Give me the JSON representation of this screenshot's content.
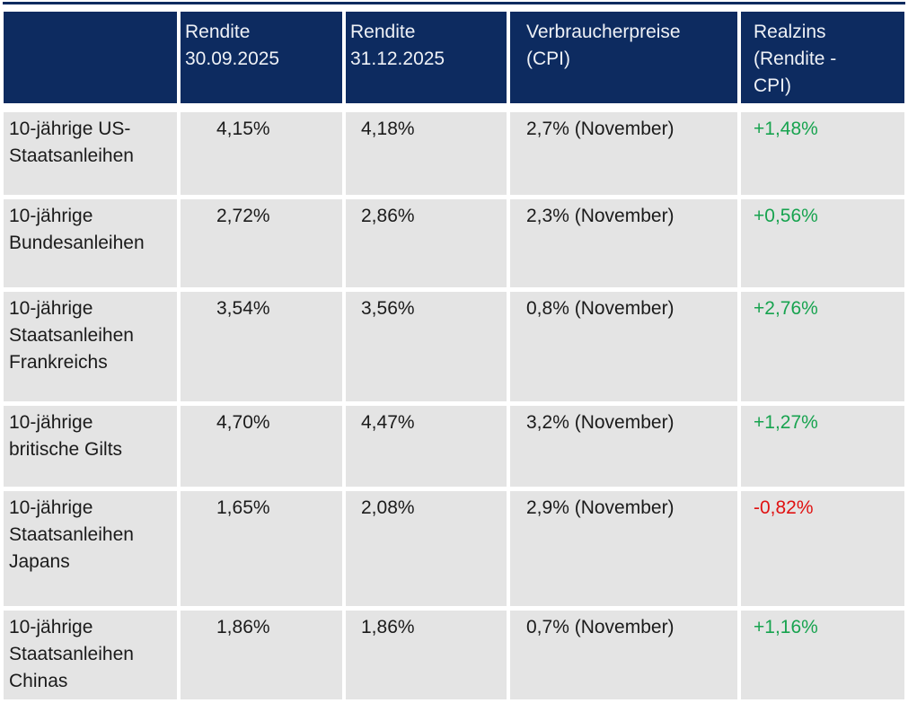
{
  "colors": {
    "header_bg": "#0d2b60",
    "header_text": "#eef1f6",
    "row_bg": "#e4e4e4",
    "body_text": "#1b1b1b",
    "positive": "#17a34f",
    "negative": "#e01111",
    "page_bg": "#ffffff"
  },
  "chart_data": {
    "type": "table",
    "columns": [
      {
        "key": "label",
        "label": ""
      },
      {
        "key": "rendite_30_09_2025",
        "label": "Rendite\n30.09.2025"
      },
      {
        "key": "rendite_31_12_2025",
        "label": "Rendite\n31.12.2025"
      },
      {
        "key": "cpi",
        "label": "Verbraucherpreise\n(CPI)"
      },
      {
        "key": "realzins",
        "label": "Realzins\n(Rendite -\nCPI)"
      }
    ],
    "rows": [
      {
        "label": "10-jährige US-\nStaatsanleihen",
        "rendite_30_09_2025": "4,15%",
        "rendite_31_12_2025": "4,18%",
        "cpi": "2,7% (November)",
        "realzins": "+1,48%",
        "realzins_positive": true
      },
      {
        "label": "10-jährige\nBundesanleihen",
        "rendite_30_09_2025": "2,72%",
        "rendite_31_12_2025": "2,86%",
        "cpi": "2,3% (November)",
        "realzins": "+0,56%",
        "realzins_positive": true
      },
      {
        "label": "10-jährige\nStaatsanleihen\nFrankreichs",
        "rendite_30_09_2025": "3,54%",
        "rendite_31_12_2025": "3,56%",
        "cpi": "0,8% (November)",
        "realzins": "+2,76%",
        "realzins_positive": true
      },
      {
        "label": "10-jährige\nbritische Gilts",
        "rendite_30_09_2025": "4,70%",
        "rendite_31_12_2025": "4,47%",
        "cpi": "3,2% (November)",
        "realzins": "+1,27%",
        "realzins_positive": true
      },
      {
        "label": "10-jährige\nStaatsanleihen\nJapans",
        "rendite_30_09_2025": "1,65%",
        "rendite_31_12_2025": "2,08%",
        "cpi": "2,9% (November)",
        "realzins": "-0,82%",
        "realzins_positive": false
      },
      {
        "label": "10-jährige\nStaatsanleihen\nChinas",
        "rendite_30_09_2025": "1,86%",
        "rendite_31_12_2025": "1,86%",
        "cpi": "0,7% (November)",
        "realzins": "+1,16%",
        "realzins_positive": true
      }
    ]
  }
}
